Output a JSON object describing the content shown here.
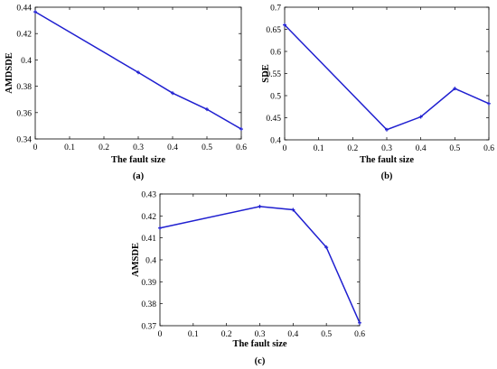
{
  "chart_data": [
    {
      "type": "line",
      "panel_label": "(a)",
      "xlabel": "The fault size",
      "ylabel": "AMDSDE",
      "xlim": [
        0,
        0.6
      ],
      "ylim": [
        0.34,
        0.44
      ],
      "xticks": [
        "0",
        "0.1",
        "0.2",
        "0.3",
        "0.4",
        "0.5",
        "0.6"
      ],
      "yticks": [
        "0.34",
        "0.36",
        "0.38",
        "0.4",
        "0.42",
        "0.44"
      ],
      "grid": false,
      "x": [
        0,
        0.3,
        0.4,
        0.5,
        0.6
      ],
      "series": [
        {
          "values": [
            0.4365,
            0.3905,
            0.3748,
            0.3625,
            0.3475
          ],
          "color": "#1f1fd0"
        }
      ]
    },
    {
      "type": "line",
      "panel_label": "(b)",
      "xlabel": "The fault size",
      "ylabel": "SDE",
      "xlim": [
        0,
        0.6
      ],
      "ylim": [
        0.4,
        0.7
      ],
      "xticks": [
        "0",
        "0.1",
        "0.2",
        "0.3",
        "0.4",
        "0.5",
        "0.6"
      ],
      "yticks": [
        "0.4",
        "0.45",
        "0.5",
        "0.55",
        "0.6",
        "0.65",
        "0.7"
      ],
      "grid": false,
      "x": [
        0,
        0.3,
        0.4,
        0.5,
        0.6
      ],
      "series": [
        {
          "values": [
            0.66,
            0.423,
            0.452,
            0.516,
            0.482
          ],
          "color": "#1f1fd0"
        }
      ]
    },
    {
      "type": "line",
      "panel_label": "(c)",
      "xlabel": "The fault size",
      "ylabel": "AMSDE",
      "xlim": [
        0,
        0.6
      ],
      "ylim": [
        0.37,
        0.43
      ],
      "xticks": [
        "0",
        "0.1",
        "0.2",
        "0.3",
        "0.4",
        "0.5",
        "0.6"
      ],
      "yticks": [
        "0.37",
        "0.38",
        "0.39",
        "0.4",
        "0.41",
        "0.42",
        "0.43"
      ],
      "grid": false,
      "x": [
        0,
        0.3,
        0.4,
        0.5,
        0.6
      ],
      "series": [
        {
          "values": [
            0.4145,
            0.4243,
            0.4228,
            0.4057,
            0.3713
          ],
          "color": "#1f1fd0"
        }
      ]
    }
  ]
}
